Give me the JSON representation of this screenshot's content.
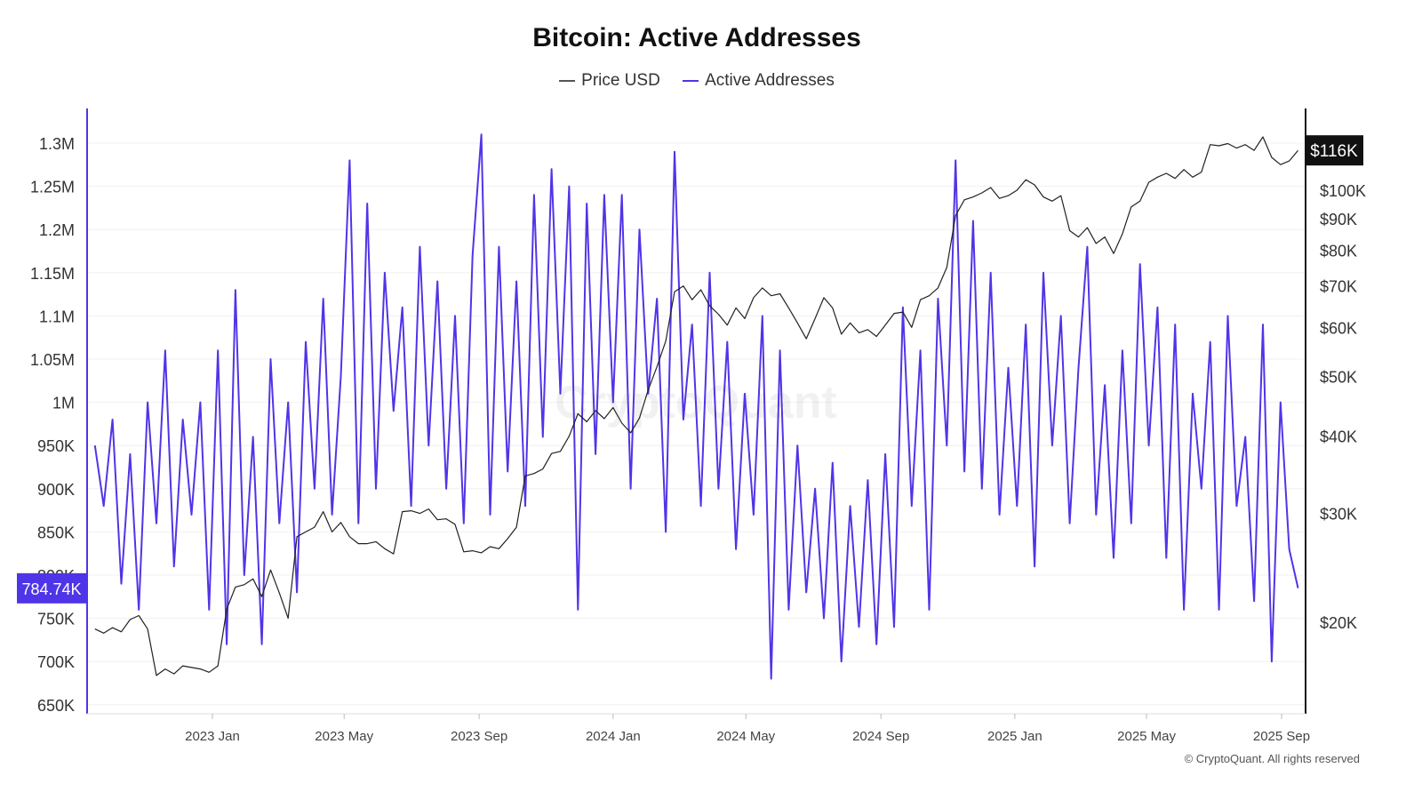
{
  "title": "Bitcoin: Active Addresses",
  "legend": [
    {
      "label": "Price USD",
      "color": "#555555"
    },
    {
      "label": "Active Addresses",
      "color": "#4f35e8"
    }
  ],
  "copyright": "© CryptoQuant. All rights reserved",
  "watermark": "CryptoQuant",
  "chart_data": {
    "type": "line",
    "title": "Bitcoin: Active Addresses",
    "x_start_date": "2022-09-16",
    "x_step_days": 8,
    "x_ticks": [
      "2023 Jan",
      "2023 May",
      "2023 Sep",
      "2024 Jan",
      "2024 May",
      "2024 Sep",
      "2025 Jan",
      "2025 May",
      "2025 Sep"
    ],
    "x_tick_dates": [
      "2023-01-01",
      "2023-05-01",
      "2023-09-01",
      "2024-01-01",
      "2024-05-01",
      "2024-09-01",
      "2025-01-01",
      "2025-05-01",
      "2025-09-01"
    ],
    "left_axis": {
      "label": "Active Addresses",
      "scale": "linear",
      "range": [
        650000,
        1300000
      ],
      "ticks": [
        "650K",
        "700K",
        "750K",
        "800K",
        "850K",
        "900K",
        "950K",
        "1M",
        "1.05M",
        "1.1M",
        "1.15M",
        "1.2M",
        "1.25M",
        "1.3M"
      ],
      "tick_values": [
        650000,
        700000,
        750000,
        800000,
        850000,
        900000,
        950000,
        1000000,
        1050000,
        1100000,
        1150000,
        1200000,
        1250000,
        1300000
      ],
      "current_label": "784.74K",
      "current_value": 784740
    },
    "right_axis": {
      "label": "Price USD",
      "scale": "log",
      "ticks": [
        "$20K",
        "$30K",
        "$40K",
        "$50K",
        "$60K",
        "$70K",
        "$80K",
        "$90K",
        "$100K"
      ],
      "tick_values": [
        20000,
        30000,
        40000,
        50000,
        60000,
        70000,
        80000,
        90000,
        100000
      ],
      "current_label": "$116K",
      "current_value": 116000
    },
    "series": [
      {
        "name": "Active Addresses",
        "axis": "left",
        "color": "#4f35e8",
        "unit": "K",
        "values": [
          950,
          880,
          980,
          790,
          940,
          760,
          1000,
          860,
          1060,
          810,
          980,
          870,
          1000,
          760,
          1060,
          720,
          1130,
          800,
          960,
          720,
          1050,
          860,
          1000,
          780,
          1070,
          900,
          1120,
          870,
          1030,
          1280,
          860,
          1230,
          900,
          1150,
          990,
          1110,
          880,
          1180,
          950,
          1140,
          900,
          1100,
          860,
          1170,
          1310,
          870,
          1180,
          920,
          1140,
          880,
          1240,
          960,
          1270,
          1010,
          1250,
          760,
          1230,
          940,
          1240,
          1000,
          1240,
          900,
          1200,
          1010,
          1120,
          850,
          1290,
          980,
          1090,
          880,
          1150,
          900,
          1070,
          830,
          1010,
          870,
          1100,
          680,
          1060,
          760,
          950,
          780,
          900,
          750,
          930,
          700,
          880,
          740,
          910,
          720,
          940,
          740,
          1110,
          880,
          1060,
          760,
          1120,
          950,
          1280,
          920,
          1210,
          900,
          1150,
          870,
          1040,
          880,
          1090,
          810,
          1150,
          950,
          1100,
          860,
          1040,
          1180,
          870,
          1020,
          820,
          1060,
          860,
          1160,
          950,
          1110,
          820,
          1090,
          760,
          1010,
          900,
          1070,
          760,
          1100,
          880,
          960,
          770,
          1090,
          700,
          1000,
          830,
          785
        ]
      },
      {
        "name": "Price USD",
        "axis": "right",
        "color": "#222222",
        "unit": "K USD",
        "values": [
          19.5,
          19.2,
          19.6,
          19.3,
          20.2,
          20.5,
          19.5,
          16.4,
          16.8,
          16.5,
          17.0,
          16.9,
          16.8,
          16.6,
          17.0,
          21.0,
          22.8,
          23.0,
          23.5,
          22.0,
          24.3,
          22.3,
          20.3,
          27.5,
          28.0,
          28.5,
          30.2,
          28.0,
          29.0,
          27.5,
          26.8,
          26.8,
          27.0,
          26.3,
          25.8,
          30.2,
          30.3,
          30.0,
          30.5,
          29.3,
          29.4,
          28.8,
          26.0,
          26.1,
          25.9,
          26.5,
          26.3,
          27.3,
          28.5,
          34.5,
          34.8,
          35.4,
          37.5,
          37.8,
          40.0,
          43.5,
          42.2,
          44.0,
          42.7,
          44.5,
          42.0,
          40.5,
          42.8,
          47.5,
          51.8,
          57.0,
          68.5,
          70.0,
          66.5,
          69.0,
          65.0,
          63.0,
          60.5,
          64.5,
          62.0,
          67.0,
          69.5,
          67.5,
          68.0,
          64.5,
          61.0,
          57.5,
          62.0,
          67.0,
          64.5,
          58.5,
          61.0,
          58.8,
          59.5,
          58.0,
          60.5,
          63.2,
          63.5,
          60.0,
          66.5,
          67.5,
          69.5,
          75.0,
          91.0,
          96.5,
          97.5,
          99.0,
          101.0,
          97.0,
          98.0,
          100.0,
          104.0,
          102.0,
          97.5,
          96.0,
          98.0,
          86.0,
          84.0,
          87.0,
          82.0,
          84.0,
          79.0,
          85.0,
          94.0,
          96.0,
          103.0,
          105.0,
          106.5,
          104.5,
          108.0,
          105.0,
          107.0,
          118.5,
          118.0,
          119.0,
          117.0,
          118.5,
          116.0,
          122.0,
          113.0,
          110.0,
          111.5,
          116.0
        ]
      }
    ],
    "grid": true,
    "legend_position": "top-center"
  }
}
